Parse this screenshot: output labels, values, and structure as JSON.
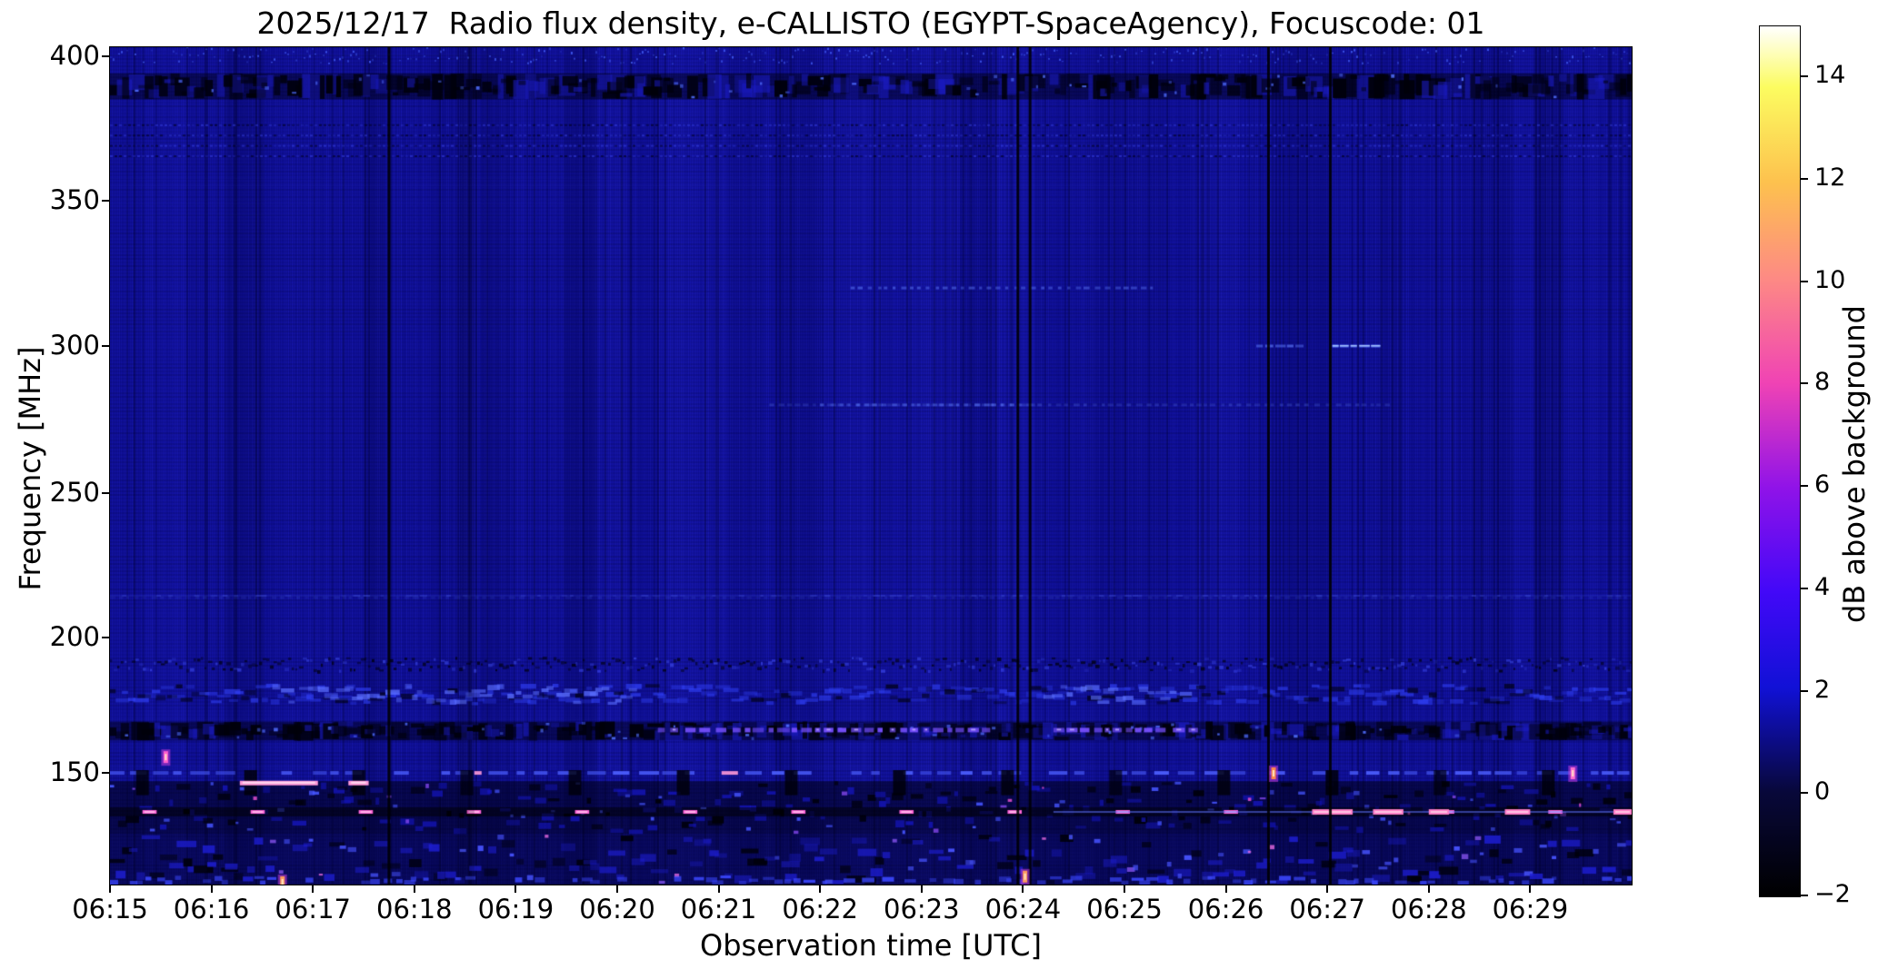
{
  "page": {
    "title": "2025/12/17  Radio flux density, e-CALLISTO (EGYPT-SpaceAgency), Focuscode: 01"
  },
  "chart_data": {
    "type": "heatmap",
    "subtype": "radio-spectrogram",
    "title": "2025/12/17  Radio flux density, e-CALLISTO (EGYPT-SpaceAgency), Focuscode: 01",
    "xlabel": "Observation time [UTC]",
    "ylabel": "Frequency [MHz]",
    "x_start_label": "06:15",
    "x_tick_labels": [
      "06:15",
      "06:16",
      "06:17",
      "06:18",
      "06:19",
      "06:20",
      "06:21",
      "06:22",
      "06:23",
      "06:24",
      "06:25",
      "06:26",
      "06:27",
      "06:28",
      "06:29"
    ],
    "x_range_minutes": [
      0,
      15
    ],
    "y_tick_values": [
      150,
      200,
      250,
      300,
      350,
      400
    ],
    "y_range_mhz": [
      110,
      403
    ],
    "grid": false,
    "legend": "none",
    "colorbar": {
      "label": "dB above background",
      "tick_values": [
        -2,
        0,
        2,
        4,
        6,
        8,
        10,
        12,
        14
      ],
      "range": [
        -2,
        15
      ],
      "colormap": "gnuplot2-like",
      "gradient_stops_bottom_to_top": [
        "#000000",
        "#08083a",
        "#1111d6",
        "#4208f8",
        "#9013e8",
        "#f043b4",
        "#fd8a84",
        "#fdc14e",
        "#fcfc60",
        "#ffffff"
      ],
      "stop_positions_pct": [
        0,
        12,
        24,
        35,
        47,
        59,
        71,
        82,
        93,
        100
      ]
    },
    "background": {
      "base_color": "#0d0d8e",
      "stripe_bright": "#2a2ae0",
      "stripe_dark": "#020240",
      "seed": 1337
    },
    "features": {
      "vlines_black": [
        {
          "t": 2.75,
          "w": 3,
          "alpha": 0.9
        },
        {
          "t": 3.52,
          "w": 16,
          "alpha": 0.18
        },
        {
          "t": 8.95,
          "w": 3,
          "alpha": 0.9
        },
        {
          "t": 9.07,
          "w": 3,
          "alpha": 0.85
        },
        {
          "t": 11.42,
          "w": 3,
          "alpha": 0.9
        },
        {
          "t": 12.03,
          "w": 3,
          "alpha": 0.9
        }
      ],
      "bands": [
        {
          "f0": 397,
          "f1": 403,
          "style": "speckle"
        },
        {
          "f0": 385,
          "f1": 394,
          "style": "darkmottle"
        },
        {
          "f0": 365,
          "f1": 377,
          "style": "dotrows"
        },
        {
          "f0": 213,
          "f1": 216,
          "style": "faintline"
        },
        {
          "f0": 187,
          "f1": 193,
          "style": "darkspeckle"
        },
        {
          "f0": 175,
          "f1": 183,
          "style": "bluemottle",
          "bright_windows_t": [
            [
              1.6,
              5.2
            ],
            [
              9.2,
              10.6
            ]
          ]
        },
        {
          "f0": 162,
          "f1": 169,
          "style": "darkmottle"
        },
        {
          "f0": 148,
          "f1": 152,
          "style": "dashline"
        },
        {
          "f0": 128,
          "f1": 147,
          "style": "heavymottle"
        },
        {
          "f0": 110,
          "f1": 128,
          "style": "bottommottle"
        }
      ],
      "violet_dashes": [
        {
          "f": 166,
          "t0": 5.4,
          "t1": 8.6
        },
        {
          "f": 166,
          "t0": 9.3,
          "t1": 10.7
        }
      ],
      "narrowband_lines": [
        {
          "f": 320,
          "t0": 7.3,
          "t1": 10.3,
          "alpha": 0.55,
          "style": "dotted"
        },
        {
          "f": 280,
          "t0": 6.5,
          "t1": 12.6,
          "alpha": 0.3,
          "style": "dotted"
        },
        {
          "f": 280,
          "t0": 7.0,
          "t1": 9.1,
          "alpha": 0.55,
          "style": "dotted"
        },
        {
          "f": 300,
          "t0": 11.3,
          "t1": 11.75,
          "alpha": 0.65,
          "style": "solid"
        },
        {
          "f": 300,
          "t0": 12.05,
          "t1": 12.5,
          "alpha": 1.0,
          "style": "solid"
        },
        {
          "f": 214,
          "t0": 0,
          "t1": 15,
          "alpha": 0.14,
          "style": "dotted"
        }
      ],
      "pink_row": {
        "f": 136,
        "period_min": 1.066,
        "t_start": 0.32,
        "dash_len_min": 0.14,
        "long_dashes_t": [
          [
            11.85,
            12.25
          ],
          [
            12.45,
            12.75
          ],
          [
            13.0,
            13.2
          ],
          [
            13.75,
            14.0
          ],
          [
            14.82,
            15.0
          ]
        ],
        "blue_underline_t": [
          9.3,
          15
        ],
        "color": "#ff63d8"
      },
      "pink_segments": [
        {
          "f": 146.5,
          "t0": 1.28,
          "t1": 2.05
        },
        {
          "f": 146.5,
          "t0": 2.35,
          "t1": 2.55
        }
      ],
      "black_columns": {
        "f0": 142,
        "f1": 151,
        "period_min": 1.066,
        "t_start": 0.32,
        "w": 14
      },
      "sparks": [
        {
          "t": 0.55,
          "f": 156,
          "color": "#ff5fd0"
        },
        {
          "t": 1.7,
          "f": 111,
          "color": "#ff9a5e"
        },
        {
          "t": 9.02,
          "f": 113,
          "color": "#ff9a5e"
        },
        {
          "t": 11.47,
          "f": 150,
          "color": "#ff8a4a"
        },
        {
          "t": 14.42,
          "f": 150,
          "color": "#ff6fd0"
        }
      ]
    }
  }
}
